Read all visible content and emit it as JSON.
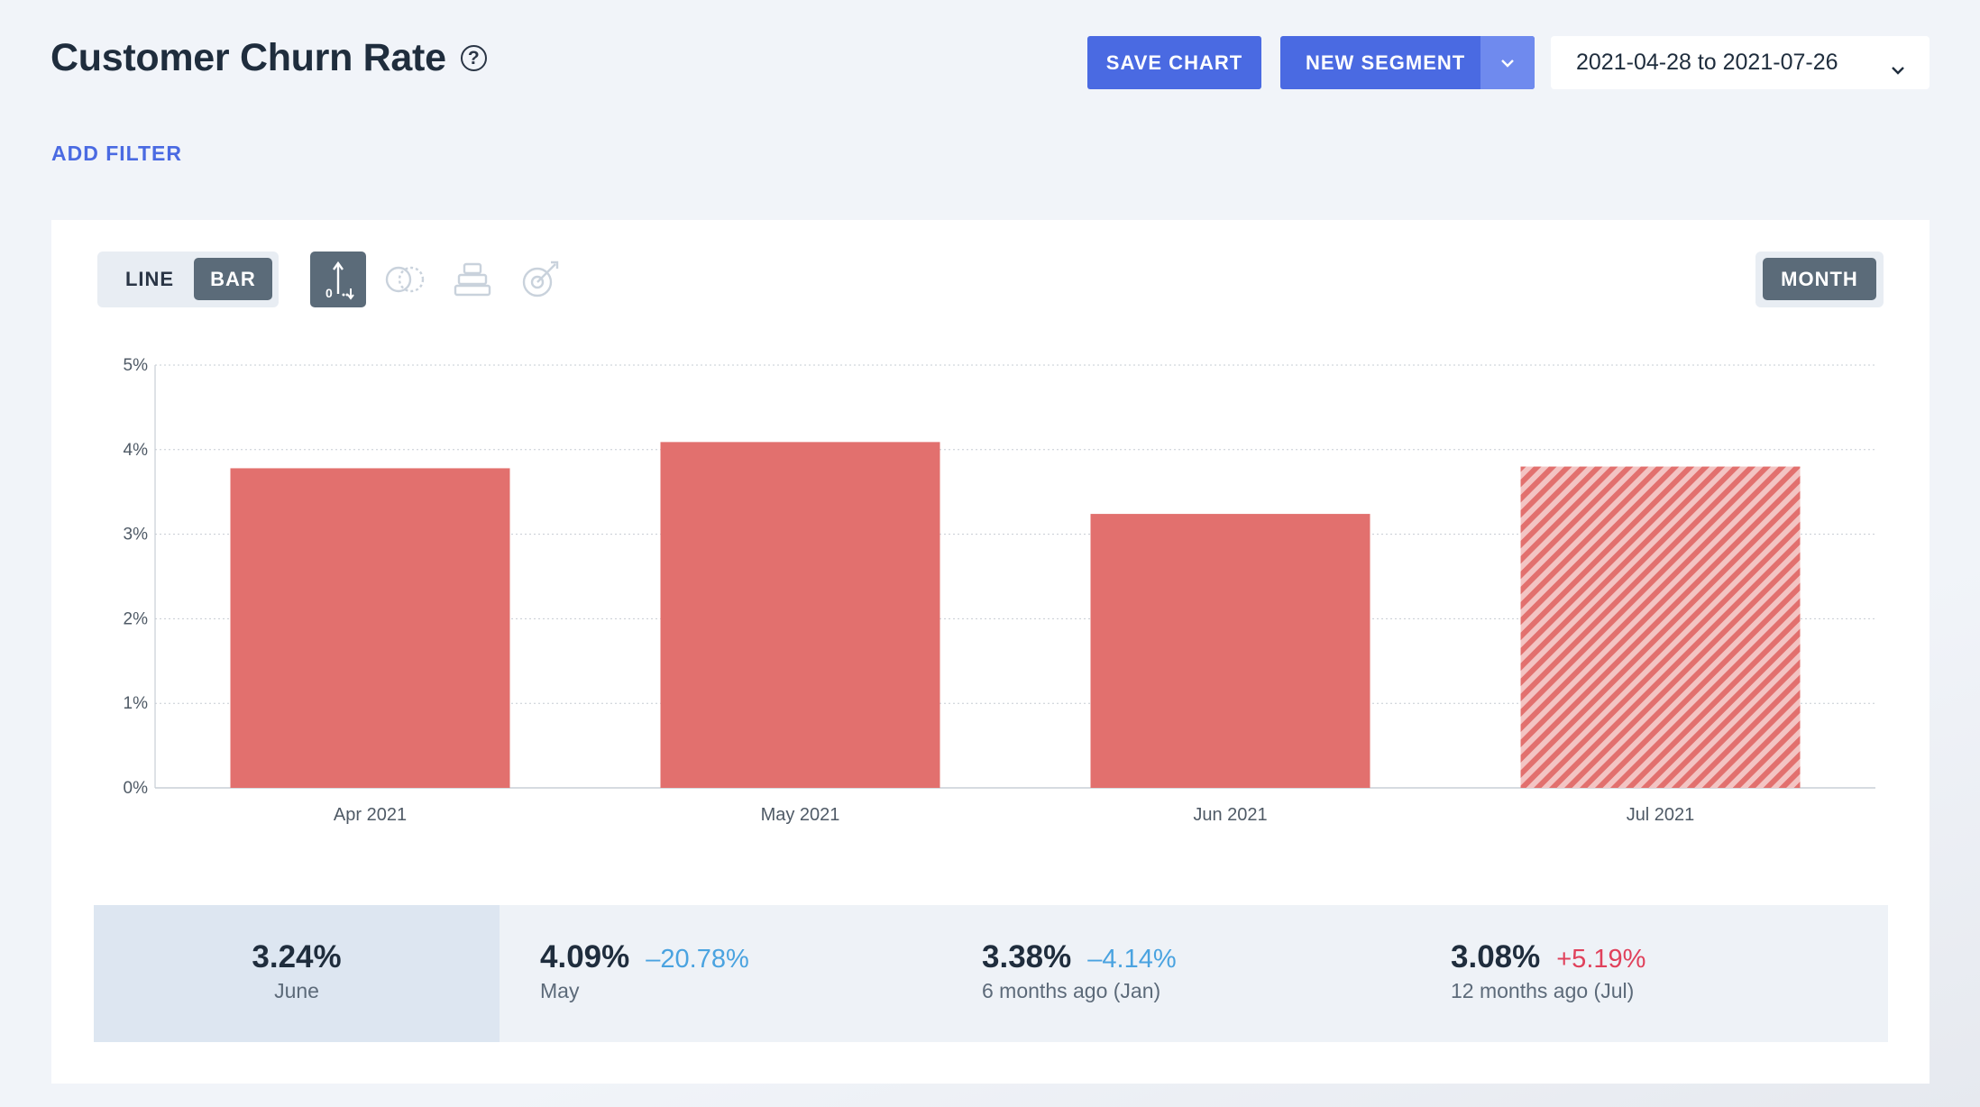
{
  "header": {
    "title": "Customer Churn Rate",
    "help_glyph": "?",
    "save_label": "SAVE CHART",
    "segment_label": "NEW SEGMENT",
    "date_range": "2021-04-28 to 2021-07-26",
    "add_filter_label": "ADD FILTER"
  },
  "toolbar": {
    "line_label": "LINE",
    "bar_label": "BAR",
    "selected_view": "BAR",
    "tools": [
      "axis-icon",
      "compare-icon",
      "stack-icon",
      "goal-icon"
    ],
    "period_label": "MONTH"
  },
  "colors": {
    "accent": "#4a6ae2",
    "bar": "#e2706e",
    "positive_change": "#e0415b",
    "negative_change": "#4aa3e0"
  },
  "chart_data": {
    "type": "bar",
    "categories": [
      "Apr 2021",
      "May 2021",
      "Jun 2021",
      "Jul 2021"
    ],
    "values": [
      3.78,
      4.09,
      3.24,
      3.8
    ],
    "partial": [
      false,
      false,
      false,
      true
    ],
    "ylim": [
      0,
      5
    ],
    "yticks": [
      "0%",
      "1%",
      "2%",
      "3%",
      "4%",
      "5%"
    ],
    "grid": true,
    "xlabel": "",
    "ylabel": ""
  },
  "stats": [
    {
      "value": "3.24%",
      "label": "June",
      "change": ""
    },
    {
      "value": "4.09%",
      "label": "May",
      "change": "–20.78%",
      "direction": "down"
    },
    {
      "value": "3.38%",
      "label": "6 months ago (Jan)",
      "change": "–4.14%",
      "direction": "down"
    },
    {
      "value": "3.08%",
      "label": "12 months ago (Jul)",
      "change": "+5.19%",
      "direction": "up"
    }
  ]
}
